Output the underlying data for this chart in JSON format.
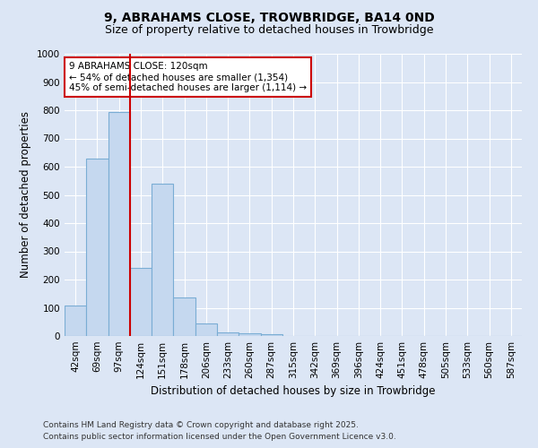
{
  "title": "9, ABRAHAMS CLOSE, TROWBRIDGE, BA14 0ND",
  "subtitle": "Size of property relative to detached houses in Trowbridge",
  "xlabel": "Distribution of detached houses by size in Trowbridge",
  "ylabel": "Number of detached properties",
  "categories": [
    "42sqm",
    "69sqm",
    "97sqm",
    "124sqm",
    "151sqm",
    "178sqm",
    "206sqm",
    "233sqm",
    "260sqm",
    "287sqm",
    "315sqm",
    "342sqm",
    "369sqm",
    "396sqm",
    "424sqm",
    "451sqm",
    "478sqm",
    "505sqm",
    "533sqm",
    "560sqm",
    "587sqm"
  ],
  "values": [
    109,
    630,
    795,
    240,
    540,
    137,
    44,
    14,
    8,
    7,
    0,
    0,
    0,
    0,
    0,
    0,
    0,
    0,
    0,
    0,
    0
  ],
  "bar_color": "#c5d8ef",
  "bar_edgecolor": "#7aadd4",
  "vline_color": "#cc0000",
  "vline_pos": 2.5,
  "ylim": [
    0,
    1000
  ],
  "yticks": [
    0,
    100,
    200,
    300,
    400,
    500,
    600,
    700,
    800,
    900,
    1000
  ],
  "annotation_text": "9 ABRAHAMS CLOSE: 120sqm\n← 54% of detached houses are smaller (1,354)\n45% of semi-detached houses are larger (1,114) →",
  "annotation_box_color": "white",
  "annotation_box_edgecolor": "#cc0000",
  "footnote1": "Contains HM Land Registry data © Crown copyright and database right 2025.",
  "footnote2": "Contains public sector information licensed under the Open Government Licence v3.0.",
  "bg_color": "#dce6f5",
  "plot_bg_color": "#dce6f5",
  "title_fontsize": 10,
  "subtitle_fontsize": 9,
  "tick_fontsize": 7.5,
  "label_fontsize": 8.5,
  "annot_fontsize": 7.5,
  "footnote_fontsize": 6.5
}
